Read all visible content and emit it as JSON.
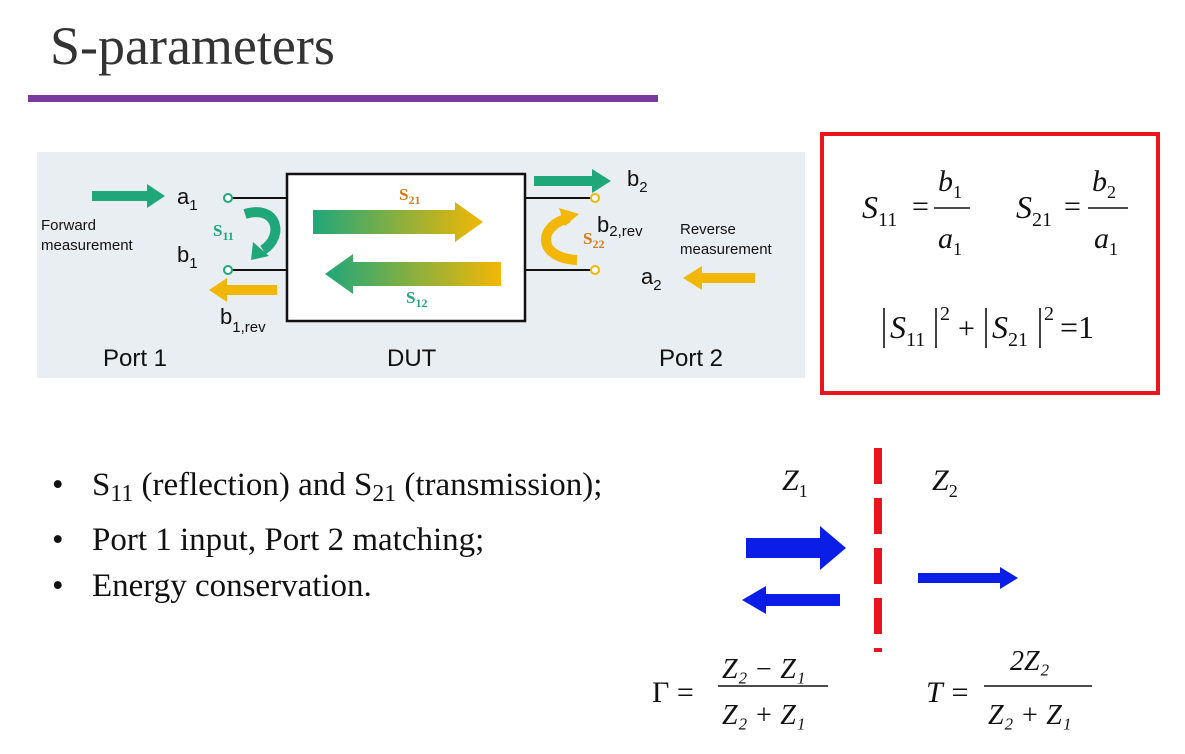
{
  "title": "S-parameters",
  "diagram": {
    "a1": "a",
    "a1_sub": "1",
    "b1": "b",
    "b1_sub": "1",
    "b1rev": "b",
    "b1rev_sub": "1,rev",
    "b2": "b",
    "b2_sub": "2",
    "b2rev": "b",
    "b2rev_sub": "2,rev",
    "a2": "a",
    "a2_sub": "2",
    "forward_line1": "Forward",
    "forward_line2": "measurement",
    "reverse_line1": "Reverse",
    "reverse_line2": "measurement",
    "s11": "S",
    "s11_sub": "11",
    "s21": "S",
    "s21_sub": "21",
    "s12": "S",
    "s12_sub": "12",
    "s22": "S",
    "s22_sub": "22",
    "port1": "Port 1",
    "dut": "DUT",
    "port2": "Port 2"
  },
  "formulas": {
    "s11_lhs": "S",
    "s11_lhs_sub": "11",
    "s11_num": "b",
    "s11_num_sub": "1",
    "s11_den": "a",
    "s11_den_sub": "1",
    "s21_lhs": "S",
    "s21_lhs_sub": "21",
    "s21_num": "b",
    "s21_num_sub": "2",
    "s21_den": "a",
    "s21_den_sub": "1",
    "energy_eq": "=1",
    "exp": "2"
  },
  "bullets": [
    {
      "pre": "S",
      "sub1": "11",
      "mid": " (reflection) and S",
      "sub2": "21",
      "post": " (transmission);"
    },
    {
      "text": "Port 1 input, Port 2 matching;"
    },
    {
      "text": "Energy conservation."
    }
  ],
  "interface": {
    "z1": "Z",
    "z1_sub": "1",
    "z2": "Z",
    "z2_sub": "2",
    "gamma_lhs": "Γ =",
    "gamma_num": "Z₂ − Z₁",
    "gamma_den": "Z₂ + Z₁",
    "t_lhs": "T =",
    "t_num": "2Z₂",
    "t_den": "Z₂ + Z₁"
  },
  "colors": {
    "accent_rule": "#7b3aa0",
    "box_border": "#e8161c",
    "wave_arrow": "#0a1ee8",
    "interface_line": "#e8161c",
    "green": "#1fa77a",
    "yellow": "#f2b705"
  }
}
